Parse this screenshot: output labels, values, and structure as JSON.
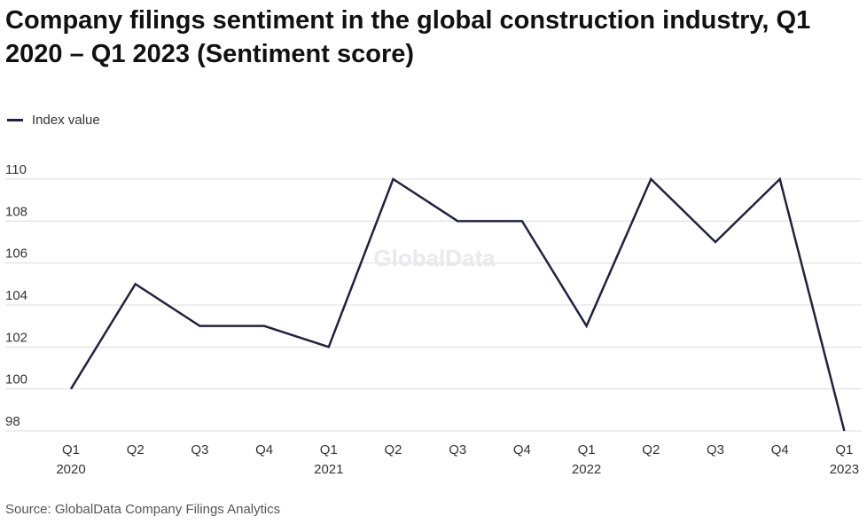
{
  "title": "Company filings sentiment in the global construction industry, Q1 2020 – Q1 2023 (Sentiment score)",
  "source": "Source: GlobalData Company Filings Analytics",
  "watermark": "GlobalData",
  "colors": {
    "line": "#23213f",
    "grid": "#dcdcdc",
    "text": "#333333"
  },
  "chart_data": {
    "type": "line",
    "title": "Company filings sentiment in the global construction industry, Q1 2020 – Q1 2023 (Sentiment score)",
    "categories": [
      [
        "Q1",
        "2020"
      ],
      [
        "Q2",
        ""
      ],
      [
        "Q3",
        ""
      ],
      [
        "Q4",
        ""
      ],
      [
        "Q1",
        "2021"
      ],
      [
        "Q2",
        ""
      ],
      [
        "Q3",
        ""
      ],
      [
        "Q4",
        ""
      ],
      [
        "Q1",
        "2022"
      ],
      [
        "Q2",
        ""
      ],
      [
        "Q3",
        ""
      ],
      [
        "Q4",
        ""
      ],
      [
        "Q1",
        "2023"
      ]
    ],
    "series": [
      {
        "name": "Index value",
        "values": [
          100,
          105,
          103,
          103,
          102,
          110,
          108,
          108,
          103,
          110,
          107,
          110,
          98
        ]
      }
    ],
    "ylim": [
      98,
      110
    ],
    "yticks": [
      98,
      100,
      102,
      104,
      106,
      108,
      110
    ],
    "grid": true,
    "legend": "top-left"
  }
}
